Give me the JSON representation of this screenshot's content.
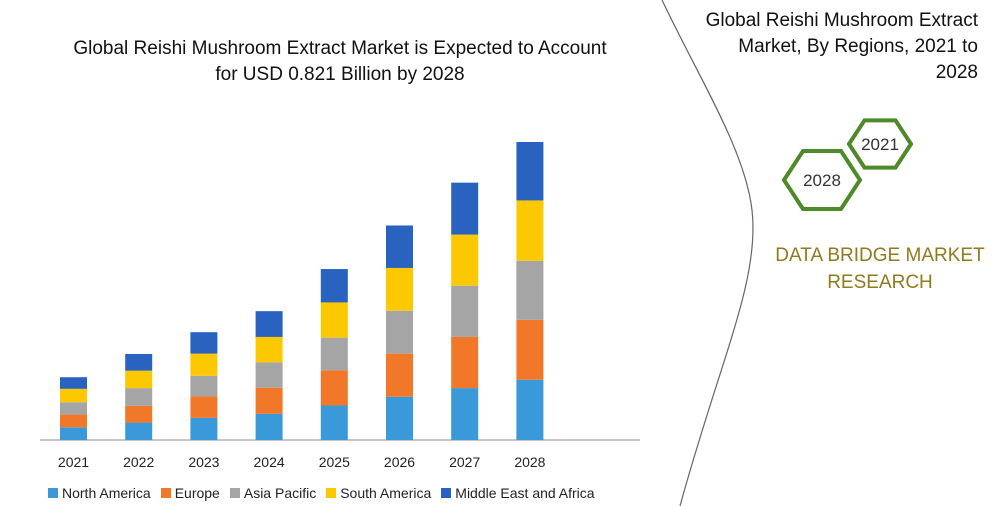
{
  "chart_data": {
    "type": "bar",
    "stacked": true,
    "title": "Global Reishi Mushroom Extract Market is Expected to Account for USD 0.821 Billion by 2028",
    "title_lines": [
      "Global Reishi Mushroom Extract Market is Expected to Account",
      "for USD 0.821 Billion by 2028"
    ],
    "xlabel": "",
    "ylabel": "",
    "unit": "USD Billion (estimated)",
    "categories": [
      "2021",
      "2022",
      "2023",
      "2024",
      "2025",
      "2026",
      "2027",
      "2028"
    ],
    "series": [
      {
        "name": "North America",
        "color": "#3a9ad9",
        "values": [
          0.035,
          0.048,
          0.061,
          0.072,
          0.095,
          0.119,
          0.143,
          0.166
        ]
      },
      {
        "name": "Europe",
        "color": "#f07828",
        "values": [
          0.035,
          0.046,
          0.059,
          0.072,
          0.097,
          0.119,
          0.141,
          0.165
        ]
      },
      {
        "name": "Asia Pacific",
        "color": "#a5a5a5",
        "values": [
          0.034,
          0.049,
          0.057,
          0.07,
          0.09,
          0.118,
          0.141,
          0.163
        ]
      },
      {
        "name": "South America",
        "color": "#fcc800",
        "values": [
          0.037,
          0.048,
          0.061,
          0.07,
          0.097,
          0.118,
          0.141,
          0.166
        ]
      },
      {
        "name": "Middle East and Africa",
        "color": "#2a62bf",
        "values": [
          0.032,
          0.046,
          0.059,
          0.071,
          0.092,
          0.117,
          0.143,
          0.161
        ]
      }
    ],
    "ylim": [
      0,
      0.821
    ],
    "y_axis_shown": false,
    "grid": false,
    "legend_position": "bottom"
  },
  "side_panel": {
    "title_lines": [
      "Global Reishi Mushroom Extract",
      "Market, By Regions, 2021 to",
      "2028"
    ],
    "hex_labels": [
      "2021",
      "2028"
    ],
    "hex_color": "#4e8a2a",
    "brand_lines": [
      "DATA BRIDGE MARKET",
      "RESEARCH"
    ],
    "brand_color": "#8f7a1e"
  }
}
